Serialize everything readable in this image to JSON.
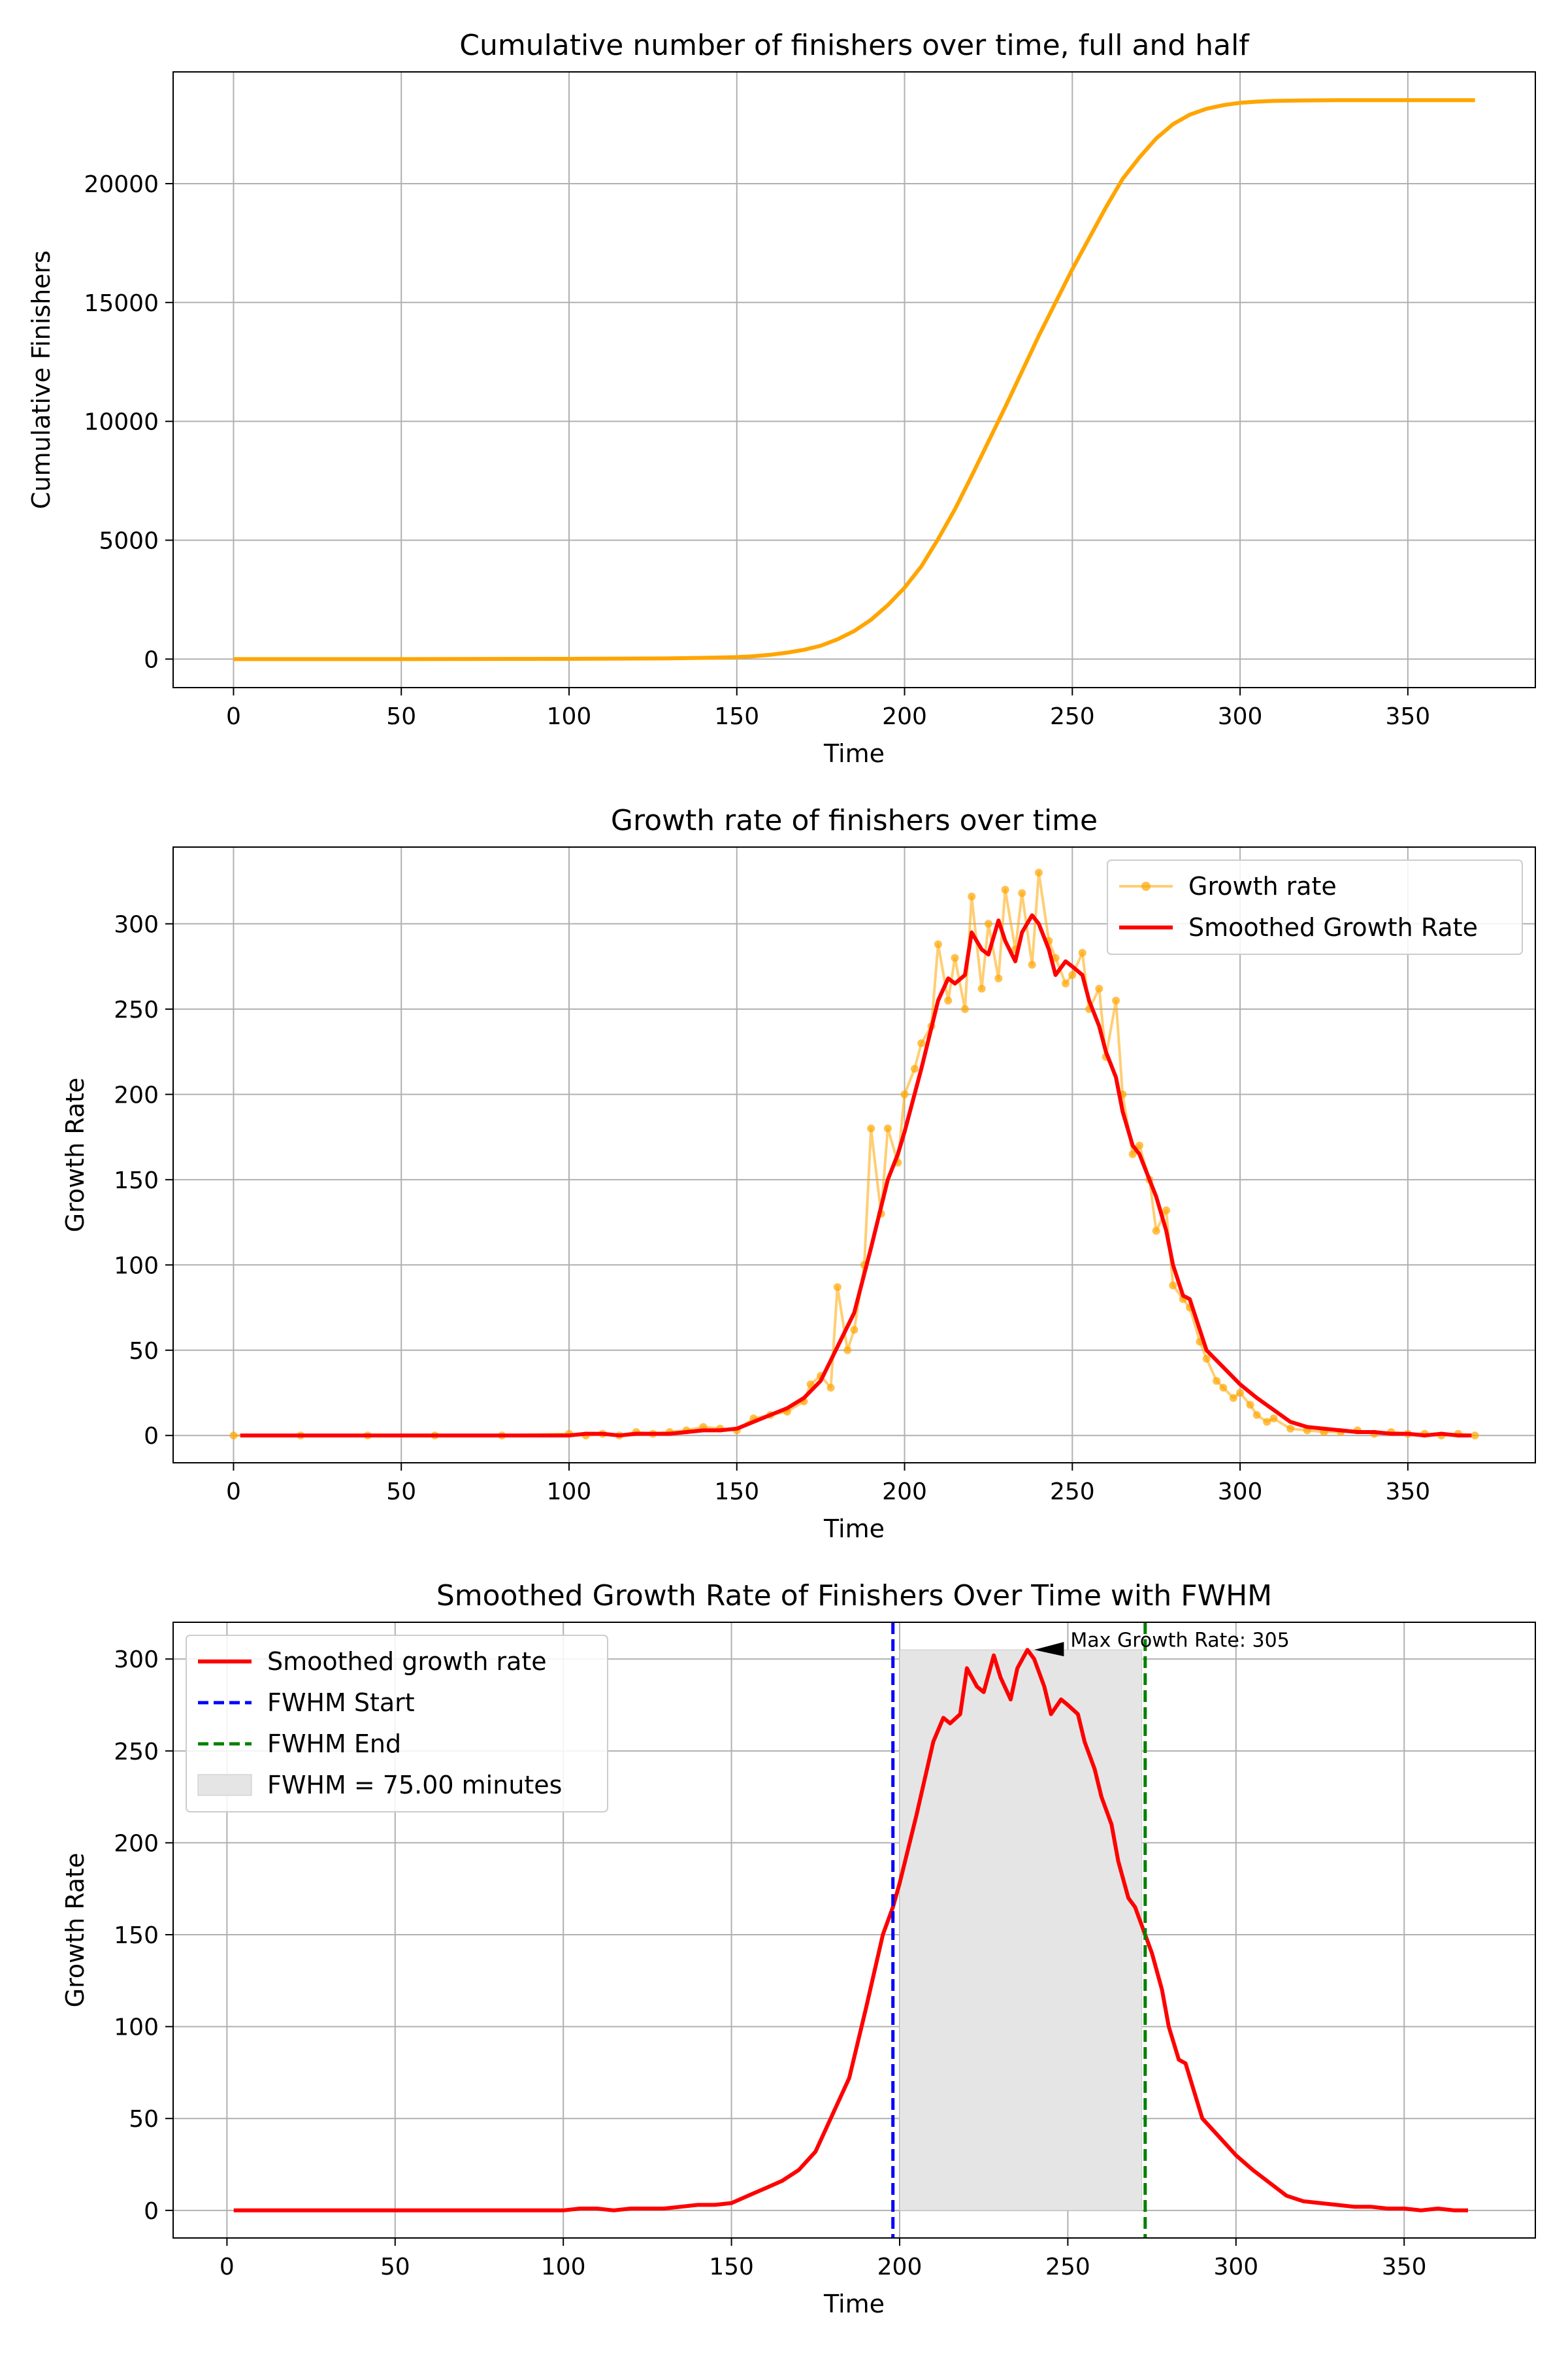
{
  "figure": {
    "background": "#ffffff"
  },
  "chart_data": [
    {
      "type": "line",
      "title": "Cumulative number of finishers over time, full and half",
      "xlabel": "Time",
      "ylabel": "Cumulative Finishers",
      "xlim": [
        -18,
        388
      ],
      "ylim": [
        -1200,
        24700
      ],
      "xticks": [
        0,
        50,
        100,
        150,
        200,
        250,
        300,
        350
      ],
      "yticks": [
        0,
        5000,
        10000,
        15000,
        20000
      ],
      "grid": true,
      "series": [
        {
          "color": "#ffa500",
          "x": [
            0,
            50,
            100,
            130,
            140,
            150,
            155,
            160,
            165,
            170,
            175,
            180,
            185,
            190,
            195,
            200,
            205,
            210,
            215,
            220,
            225,
            230,
            235,
            240,
            245,
            250,
            255,
            260,
            265,
            270,
            275,
            280,
            285,
            290,
            295,
            300,
            305,
            310,
            320,
            330,
            340,
            350,
            360,
            370
          ],
          "values": [
            0,
            0,
            10,
            30,
            50,
            80,
            120,
            180,
            270,
            390,
            560,
            830,
            1180,
            1650,
            2270,
            3000,
            3900,
            5050,
            6300,
            7700,
            9150,
            10600,
            12100,
            13600,
            15000,
            16400,
            17700,
            19000,
            20200,
            21100,
            21900,
            22500,
            22900,
            23150,
            23300,
            23400,
            23450,
            23480,
            23500,
            23510,
            23510,
            23510,
            23510,
            23510
          ]
        }
      ]
    },
    {
      "type": "line",
      "title": "Growth rate of finishers over time",
      "xlabel": "Time",
      "ylabel": "Growth Rate",
      "xlim": [
        -18,
        388
      ],
      "ylim": [
        -16,
        345
      ],
      "xticks": [
        0,
        50,
        100,
        150,
        200,
        250,
        300,
        350
      ],
      "yticks": [
        0,
        50,
        100,
        150,
        200,
        250,
        300
      ],
      "grid": true,
      "legend": "top-right",
      "series": [
        {
          "name": "Growth rate",
          "color": "#ffa500",
          "style": "line-with-markers",
          "x": [
            0,
            20,
            40,
            60,
            80,
            100,
            105,
            110,
            115,
            120,
            125,
            130,
            135,
            140,
            145,
            150,
            155,
            160,
            165,
            170,
            172,
            175,
            178,
            180,
            183,
            185,
            188,
            190,
            193,
            195,
            198,
            200,
            203,
            205,
            208,
            210,
            213,
            215,
            218,
            220,
            223,
            225,
            228,
            230,
            233,
            235,
            238,
            240,
            243,
            245,
            248,
            250,
            253,
            255,
            258,
            260,
            263,
            265,
            268,
            270,
            273,
            275,
            278,
            280,
            283,
            285,
            288,
            290,
            293,
            295,
            298,
            300,
            303,
            305,
            308,
            310,
            315,
            320,
            325,
            330,
            335,
            340,
            345,
            350,
            355,
            360,
            365,
            370
          ],
          "values": [
            0,
            0,
            0,
            0,
            0,
            1,
            0,
            1,
            0,
            2,
            1,
            2,
            3,
            5,
            4,
            3,
            10,
            12,
            14,
            20,
            30,
            35,
            28,
            87,
            50,
            62,
            100,
            180,
            130,
            180,
            160,
            200,
            215,
            230,
            240,
            288,
            255,
            280,
            250,
            316,
            262,
            300,
            268,
            320,
            285,
            318,
            276,
            330,
            290,
            280,
            265,
            270,
            283,
            250,
            262,
            222,
            255,
            200,
            165,
            170,
            150,
            120,
            132,
            88,
            80,
            75,
            55,
            45,
            32,
            28,
            22,
            25,
            18,
            12,
            8,
            10,
            4,
            3,
            2,
            2,
            3,
            1,
            2,
            1,
            1,
            0,
            1,
            0
          ]
        },
        {
          "name": "Smoothed Growth Rate",
          "color": "#ff0000",
          "x": [
            2,
            20,
            40,
            60,
            80,
            100,
            105,
            110,
            115,
            120,
            125,
            130,
            135,
            140,
            145,
            150,
            155,
            160,
            165,
            170,
            175,
            180,
            185,
            190,
            195,
            198,
            200,
            205,
            210,
            213,
            215,
            218,
            220,
            223,
            225,
            228,
            230,
            233,
            235,
            238,
            240,
            243,
            245,
            248,
            250,
            253,
            255,
            258,
            260,
            263,
            265,
            268,
            270,
            273,
            275,
            278,
            280,
            283,
            285,
            290,
            295,
            300,
            305,
            310,
            315,
            320,
            325,
            330,
            335,
            340,
            345,
            350,
            355,
            360,
            365,
            369
          ],
          "values": [
            0,
            0,
            0,
            0,
            0,
            0,
            1,
            1,
            0,
            1,
            1,
            1,
            2,
            3,
            3,
            4,
            8,
            12,
            16,
            22,
            32,
            52,
            72,
            110,
            150,
            165,
            178,
            215,
            255,
            268,
            265,
            270,
            295,
            285,
            282,
            302,
            290,
            278,
            295,
            305,
            300,
            285,
            270,
            278,
            275,
            270,
            255,
            240,
            225,
            210,
            190,
            170,
            165,
            150,
            140,
            120,
            100,
            82,
            80,
            50,
            40,
            30,
            22,
            15,
            8,
            5,
            4,
            3,
            2,
            2,
            1,
            1,
            0,
            1,
            0,
            0
          ]
        }
      ]
    },
    {
      "type": "line",
      "title": "Smoothed Growth Rate of Finishers Over Time with FWHM",
      "xlabel": "Time",
      "ylabel": "Growth Rate",
      "xlim": [
        -16,
        389
      ],
      "ylim": [
        -15,
        320
      ],
      "xticks": [
        0,
        50,
        100,
        150,
        200,
        250,
        300,
        350
      ],
      "yticks": [
        0,
        50,
        100,
        150,
        200,
        250,
        300
      ],
      "grid": true,
      "legend": "top-left",
      "series": [
        {
          "name": "Smoothed growth rate",
          "color": "#ff0000",
          "x": [
            2,
            20,
            40,
            60,
            80,
            100,
            105,
            110,
            115,
            120,
            125,
            130,
            135,
            140,
            145,
            150,
            155,
            160,
            165,
            170,
            175,
            180,
            185,
            190,
            195,
            198,
            200,
            205,
            210,
            213,
            215,
            218,
            220,
            223,
            225,
            228,
            230,
            233,
            235,
            238,
            240,
            243,
            245,
            248,
            250,
            253,
            255,
            258,
            260,
            263,
            265,
            268,
            270,
            273,
            275,
            278,
            280,
            283,
            285,
            290,
            295,
            300,
            305,
            310,
            315,
            320,
            325,
            330,
            335,
            340,
            345,
            350,
            355,
            360,
            365,
            369
          ],
          "values": [
            0,
            0,
            0,
            0,
            0,
            0,
            1,
            1,
            0,
            1,
            1,
            1,
            2,
            3,
            3,
            4,
            8,
            12,
            16,
            22,
            32,
            52,
            72,
            110,
            150,
            165,
            178,
            215,
            255,
            268,
            265,
            270,
            295,
            285,
            282,
            302,
            290,
            278,
            295,
            305,
            300,
            285,
            270,
            278,
            275,
            270,
            255,
            240,
            225,
            210,
            190,
            170,
            165,
            150,
            140,
            120,
            100,
            82,
            80,
            50,
            40,
            30,
            22,
            15,
            8,
            5,
            4,
            3,
            2,
            2,
            1,
            1,
            0,
            1,
            0,
            0
          ]
        }
      ],
      "fwhm": {
        "start": 198,
        "end": 273,
        "start_label": "FWHM Start",
        "end_label": "FWHM End",
        "start_color": "#0000ff",
        "end_color": "#008000",
        "shade_label": "FWHM = 75.00 minutes",
        "shade_color": "#e5e5e5",
        "shade_x": [
          200,
          272
        ],
        "shade_top": 305
      },
      "annotation": {
        "text": "Max Growth Rate: 305",
        "x": 240,
        "y": 305,
        "text_x": 250,
        "text_y": 308
      }
    }
  ]
}
